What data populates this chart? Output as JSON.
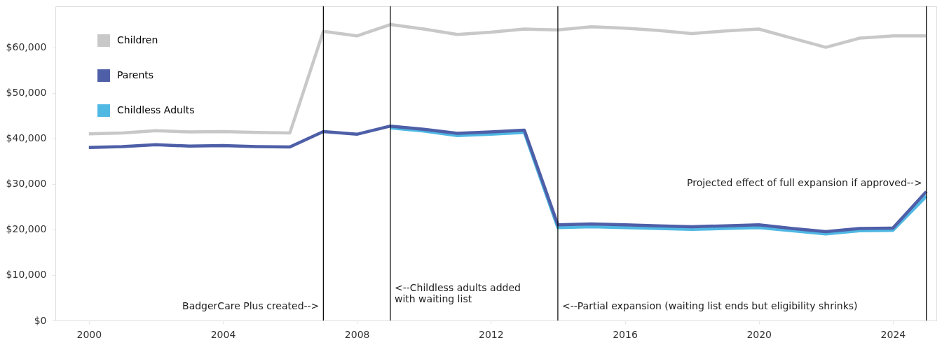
{
  "chart_data": {
    "type": "line",
    "x": [
      2000,
      2001,
      2002,
      2003,
      2004,
      2005,
      2006,
      2007,
      2008,
      2009,
      2010,
      2011,
      2012,
      2013,
      2014,
      2015,
      2016,
      2017,
      2018,
      2019,
      2020,
      2021,
      2022,
      2023,
      2024,
      2025
    ],
    "series": [
      {
        "name": "Children",
        "color": "#c8c8c8",
        "values": [
          41000,
          41200,
          41700,
          41400,
          41500,
          41300,
          41200,
          63500,
          62500,
          65000,
          64000,
          62800,
          63300,
          64000,
          63800,
          64500,
          64200,
          63700,
          63000,
          63600,
          64000,
          62000,
          60000,
          62000,
          62500,
          62500
        ]
      },
      {
        "name": "Parents",
        "color": "#4e5fa8",
        "values": [
          38000,
          38200,
          38600,
          38300,
          38400,
          38200,
          38100,
          41500,
          40900,
          42700,
          42000,
          41100,
          41400,
          41800,
          21000,
          21200,
          21000,
          20800,
          20600,
          20800,
          21000,
          20200,
          19500,
          20200,
          20300,
          28300
        ]
      },
      {
        "name": "Childless Adults",
        "color": "#4fb8e3",
        "values": [
          null,
          null,
          null,
          null,
          null,
          null,
          null,
          null,
          null,
          42300,
          41600,
          40600,
          40900,
          41300,
          20400,
          20600,
          20400,
          20200,
          20000,
          20200,
          20400,
          19700,
          19000,
          19700,
          19800,
          27300
        ]
      }
    ],
    "xlim": [
      1999,
      2025.3
    ],
    "xticks": [
      2000,
      2004,
      2008,
      2012,
      2016,
      2020,
      2024
    ],
    "ylim": [
      0,
      69000
    ],
    "yticks": [
      {
        "value": 0,
        "label": "$0"
      },
      {
        "value": 10000,
        "label": "$10,000"
      },
      {
        "value": 20000,
        "label": "$20,000"
      },
      {
        "value": 30000,
        "label": "$30,000"
      },
      {
        "value": 40000,
        "label": "$40,000"
      },
      {
        "value": 50000,
        "label": "$50,000"
      },
      {
        "value": 60000,
        "label": "$60,000"
      }
    ],
    "ref_lines": [
      {
        "axis": "x",
        "value": 2007,
        "color": "#000000"
      },
      {
        "axis": "x",
        "value": 2009,
        "color": "#000000"
      },
      {
        "axis": "x",
        "value": 2014,
        "color": "#000000"
      },
      {
        "axis": "x",
        "value": 2025,
        "color": "#000000"
      }
    ],
    "annotations": [
      {
        "text": "BadgerCare Plus created-->",
        "x": 2007,
        "y": 2000
      },
      {
        "text": "<--Childless adults added\nwith waiting list",
        "x": 2009,
        "y": 6000
      },
      {
        "text": "<--Partial expansion (waiting list ends but eligibility shrinks)",
        "x": 2014,
        "y": 2000
      },
      {
        "text": "Projected effect of full expansion if approved-->",
        "x": 2025,
        "y": 29000
      }
    ],
    "grid": false,
    "legend": "top left",
    "line_style": "solid"
  }
}
